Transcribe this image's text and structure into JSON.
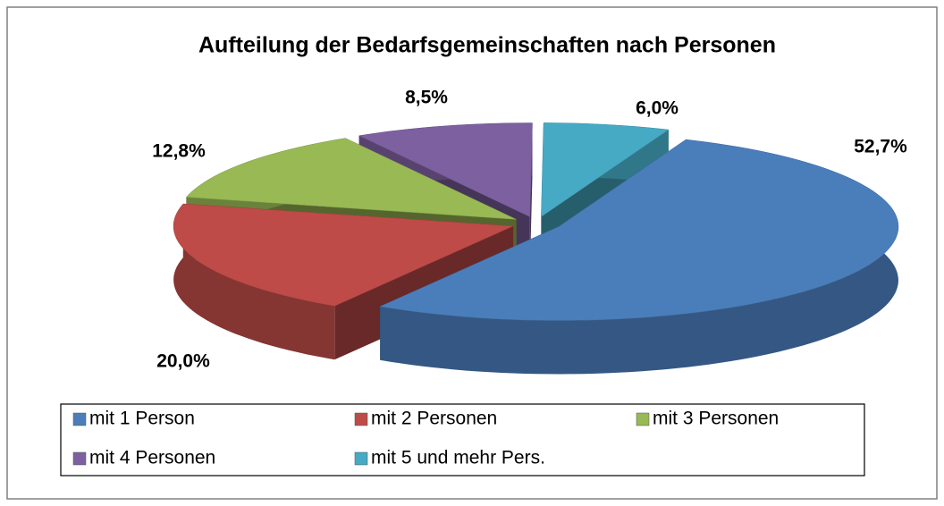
{
  "chart_data": {
    "type": "pie3d",
    "title": "Aufteilung der Bedarfsgemeinschaften nach Personen",
    "categories": [
      "mit 1 Person",
      "mit 2 Personen",
      "mit 3 Personen",
      "mit 4 Personen",
      "mit 5 und mehr Pers."
    ],
    "values": [
      52.7,
      20.0,
      12.8,
      8.5,
      6.0
    ],
    "value_labels": [
      "52,7%",
      "20,0%",
      "12,8%",
      "8,5%",
      "6,0%"
    ],
    "colors": [
      "#4a7ebb",
      "#be4b48",
      "#98b954",
      "#7d60a0",
      "#46aac5"
    ],
    "legend": "bottom"
  }
}
